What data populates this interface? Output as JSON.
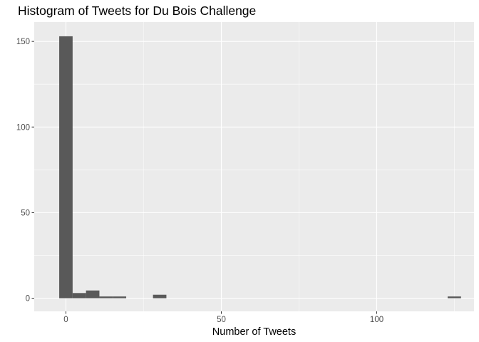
{
  "chart_data": {
    "type": "bar",
    "title": "Histogram of Tweets for Du Bois Challenge",
    "xlabel": "Number of Tweets",
    "ylabel": "",
    "xlim": [
      -10.2,
      131.3
    ],
    "ylim": [
      -7.7,
      161.3
    ],
    "x_ticks": [
      0,
      50,
      100
    ],
    "y_ticks": [
      0,
      50,
      100,
      150
    ],
    "grid": true,
    "bin_width": 4.31,
    "bins": [
      {
        "x": 0.0,
        "count": 153
      },
      {
        "x": 4.31,
        "count": 3
      },
      {
        "x": 8.62,
        "count": 4.5
      },
      {
        "x": 12.93,
        "count": 1
      },
      {
        "x": 17.24,
        "count": 1
      },
      {
        "x": 30.17,
        "count": 2
      },
      {
        "x": 124.97,
        "count": 1
      }
    ],
    "colors": {
      "bar": "#595959",
      "panel": "#ebebeb",
      "grid_major": "#ffffff",
      "tick_text": "#4d4d4d"
    }
  }
}
